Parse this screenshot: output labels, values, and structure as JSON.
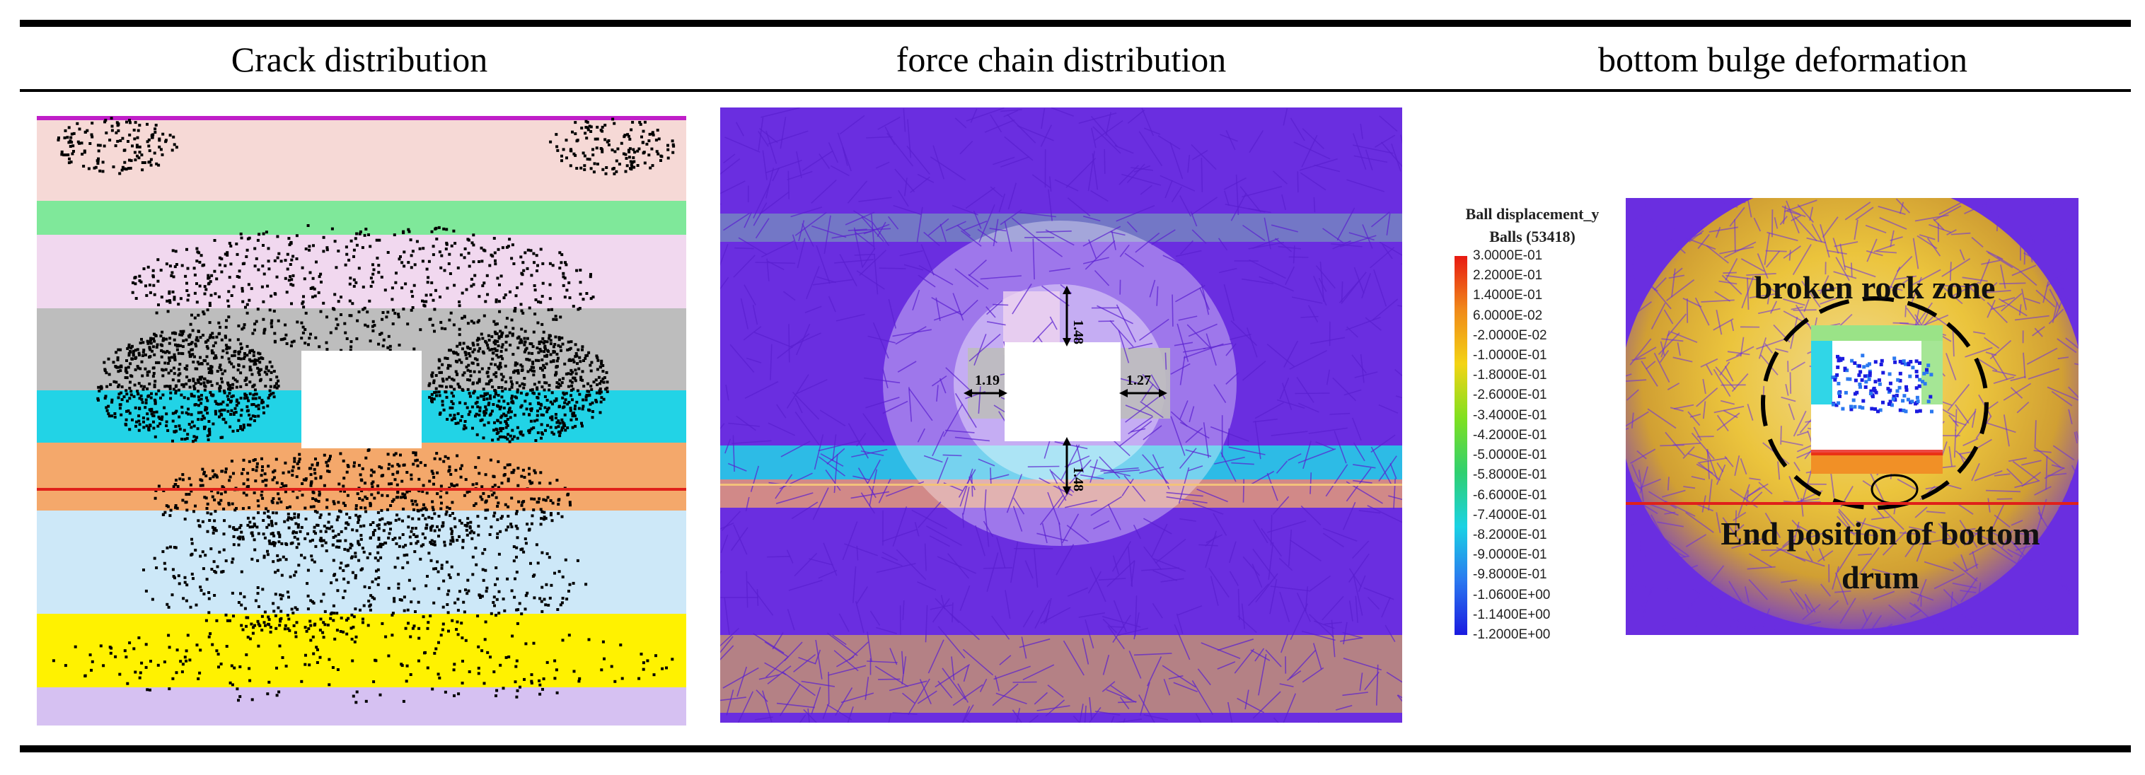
{
  "headers": {
    "col1": "Crack distribution",
    "col2": "force chain distribution",
    "col3": "bottom bulge deformation"
  },
  "panel2_labels": {
    "top": "1.48",
    "bottom": "1.48",
    "left": "1.19",
    "right": "1.27"
  },
  "panel3_labels": {
    "zone": "broken rock zone",
    "end_line1": "End position of bottom",
    "end_line2": "drum"
  },
  "legend": {
    "title": "Ball displacement_y",
    "subtitle": "Balls (53418)",
    "ticks": [
      "3.0000E-01",
      "2.2000E-01",
      "1.4000E-01",
      "6.0000E-02",
      "-2.0000E-02",
      "-1.0000E-01",
      "-1.8000E-01",
      "-2.6000E-01",
      "-3.4000E-01",
      "-4.2000E-01",
      "-5.0000E-01",
      "-5.8000E-01",
      "-6.6000E-01",
      "-7.4000E-01",
      "-8.2000E-01",
      "-9.0000E-01",
      "-9.8000E-01",
      "-1.0600E+00",
      "-1.1400E+00",
      "-1.2000E+00"
    ]
  },
  "colors": {
    "crack_layers": [
      "#c01ec8",
      "#f6d9d6",
      "#7fe89a",
      "#f1d8ef",
      "#bdbdbd",
      "#22d3e6",
      "#f4a86b",
      "#cde8f8",
      "#fff200",
      "#d6c1f2"
    ],
    "crack_line": "#e0201a",
    "force_chain": "#6a2ee0",
    "force_line": "#f3c27a",
    "legend_gradient": [
      "#e81a12",
      "#f08a1a",
      "#f3d414",
      "#7fe020",
      "#2fd070",
      "#1ad2e4",
      "#2a78f0",
      "#1a1ae0"
    ],
    "end_line": "#e0201a"
  }
}
